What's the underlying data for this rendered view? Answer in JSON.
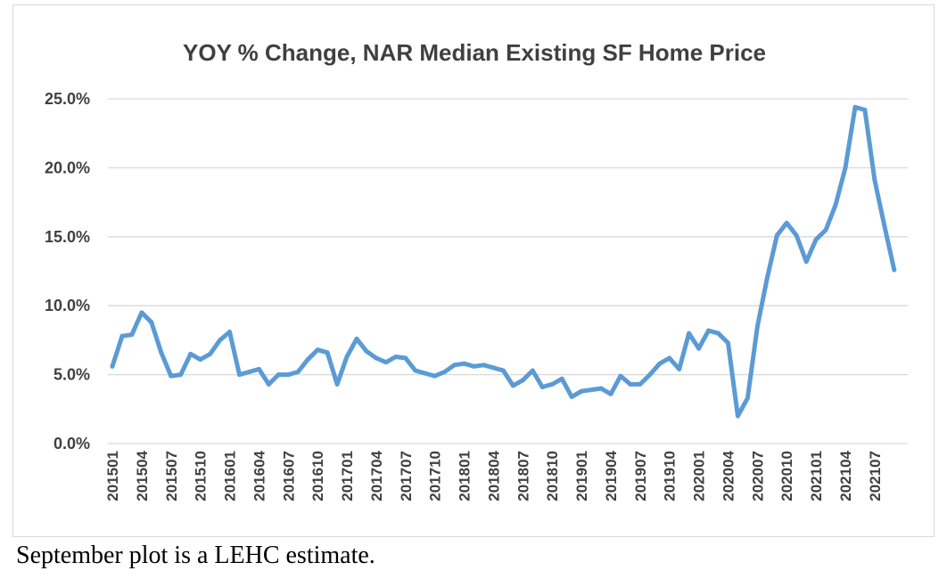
{
  "caption": "September plot is a LEHC estimate.",
  "colors": {
    "line": "#5b9bd5",
    "grid": "#d9d9d9",
    "text": "#404040"
  },
  "chart_data": {
    "type": "line",
    "title": "YOY % Change, NAR Median Existing SF Home Price",
    "xlabel": "",
    "ylabel": "",
    "ylim": [
      0,
      25
    ],
    "yticks": [
      0,
      5,
      10,
      15,
      20,
      25
    ],
    "ytick_labels": [
      "0.0%",
      "5.0%",
      "10.0%",
      "15.0%",
      "20.0%",
      "25.0%"
    ],
    "xtick_labels": [
      "201501",
      "201504",
      "201507",
      "201510",
      "201601",
      "201604",
      "201607",
      "201610",
      "201701",
      "201704",
      "201707",
      "201710",
      "201801",
      "201804",
      "201807",
      "201810",
      "201901",
      "201904",
      "201907",
      "201910",
      "202001",
      "202004",
      "202007",
      "202010",
      "202101",
      "202104",
      "202107"
    ],
    "grid": true,
    "series": [
      {
        "name": "YOY % Change",
        "x": [
          "201501",
          "201502",
          "201503",
          "201504",
          "201505",
          "201506",
          "201507",
          "201508",
          "201509",
          "201510",
          "201511",
          "201512",
          "201601",
          "201602",
          "201603",
          "201604",
          "201605",
          "201606",
          "201607",
          "201608",
          "201609",
          "201610",
          "201611",
          "201612",
          "201701",
          "201702",
          "201703",
          "201704",
          "201705",
          "201706",
          "201707",
          "201708",
          "201709",
          "201710",
          "201711",
          "201712",
          "201801",
          "201802",
          "201803",
          "201804",
          "201805",
          "201806",
          "201807",
          "201808",
          "201809",
          "201810",
          "201811",
          "201812",
          "201901",
          "201902",
          "201903",
          "201904",
          "201905",
          "201906",
          "201907",
          "201908",
          "201909",
          "201910",
          "201911",
          "201912",
          "202001",
          "202002",
          "202003",
          "202004",
          "202005",
          "202006",
          "202007",
          "202008",
          "202009",
          "202010",
          "202011",
          "202012",
          "202101",
          "202102",
          "202103",
          "202104",
          "202105",
          "202106",
          "202107",
          "202108",
          "202109"
        ],
        "values": [
          5.6,
          7.8,
          7.9,
          9.5,
          8.8,
          6.6,
          4.9,
          5.0,
          6.5,
          6.1,
          6.5,
          7.5,
          8.1,
          5.0,
          5.2,
          5.4,
          4.3,
          5.0,
          5.0,
          5.2,
          6.1,
          6.8,
          6.6,
          4.3,
          6.3,
          7.6,
          6.7,
          6.2,
          5.9,
          6.3,
          6.2,
          5.3,
          5.1,
          4.9,
          5.2,
          5.7,
          5.8,
          5.6,
          5.7,
          5.5,
          5.3,
          4.2,
          4.6,
          5.3,
          4.1,
          4.3,
          4.7,
          3.4,
          3.8,
          3.9,
          4.0,
          3.6,
          4.9,
          4.3,
          4.3,
          5.0,
          5.8,
          6.2,
          5.4,
          8.0,
          6.9,
          8.2,
          8.0,
          7.3,
          2.0,
          3.3,
          8.5,
          12.0,
          15.1,
          16.0,
          15.1,
          13.2,
          14.8,
          15.5,
          17.3,
          20.0,
          24.4,
          24.2,
          19.1,
          15.8,
          12.6
        ]
      }
    ]
  }
}
